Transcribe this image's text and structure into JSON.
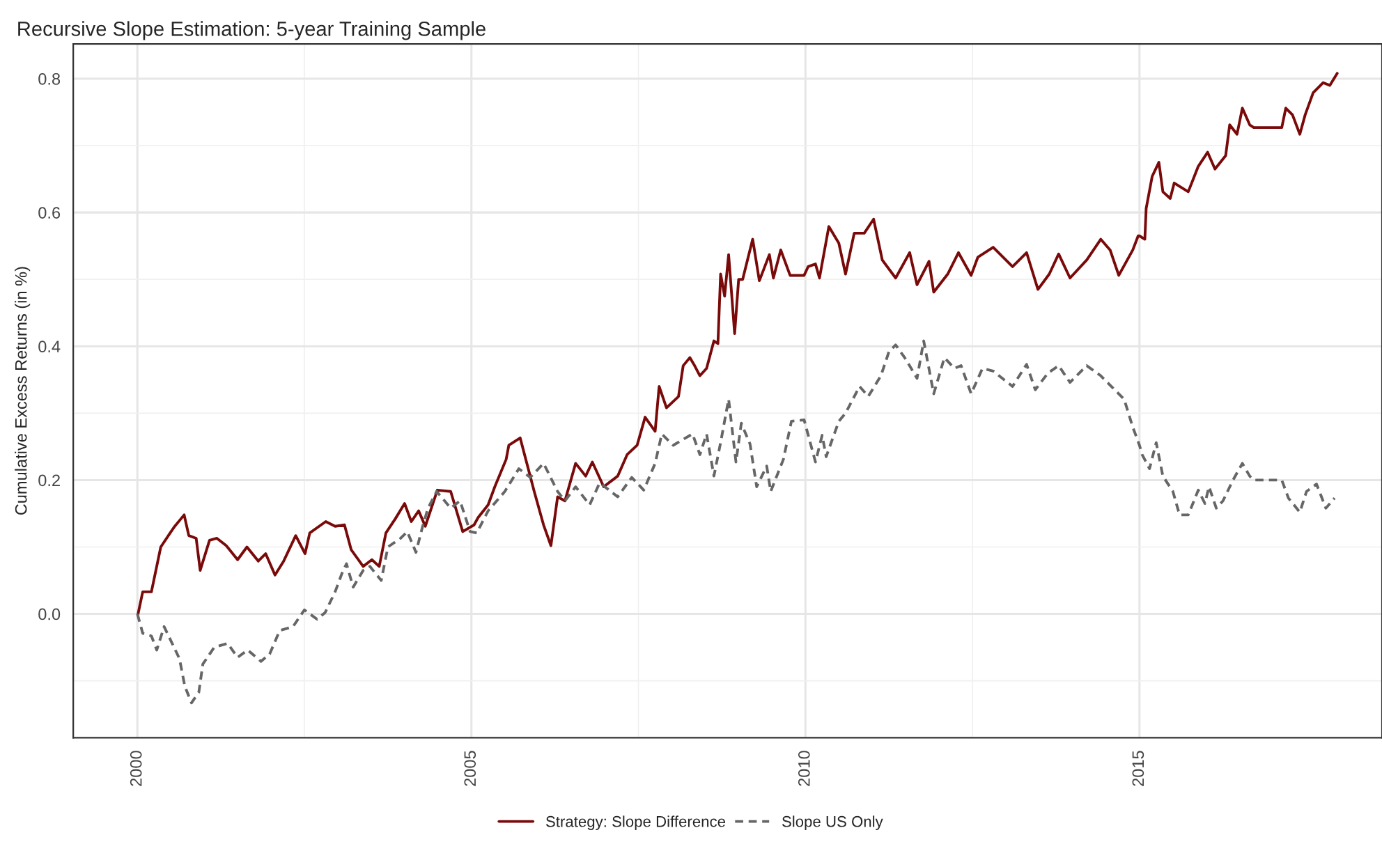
{
  "chart_data": {
    "type": "line",
    "title": "Recursive Slope Estimation: 5-year Training Sample",
    "ylabel": "Cumulative Excess Returns (in %)",
    "xlim": [
      1999.04,
      2018.63
    ],
    "ylim": [
      -0.185,
      0.852
    ],
    "xticks": [
      2000,
      2005,
      2010,
      2015
    ],
    "yticks": [
      {
        "value": 0,
        "label": "0.0"
      },
      {
        "value": 0.2,
        "label": "0.2"
      },
      {
        "value": 0.4,
        "label": "0.4"
      },
      {
        "value": 0.6,
        "label": "0.6"
      },
      {
        "value": 0.8,
        "label": "0.8"
      }
    ],
    "grid": true,
    "legend": "bottom",
    "series": [
      {
        "name": "Strategy: Slope Difference",
        "color": "#7a0a0a",
        "line_style": "solid",
        "x": [
          2000.01,
          2000.08,
          2000.21,
          2000.35,
          2000.49,
          2000.56,
          2000.7,
          2000.77,
          2000.88,
          2000.94,
          2001.08,
          2001.19,
          2001.33,
          2001.5,
          2001.64,
          2001.81,
          2001.92,
          2002.06,
          2002.19,
          2002.37,
          2002.51,
          2002.58,
          2002.82,
          2002.96,
          2003.1,
          2003.2,
          2003.38,
          2003.51,
          2003.62,
          2003.72,
          2003.86,
          2004.0,
          2004.1,
          2004.21,
          2004.31,
          2004.49,
          2004.69,
          2004.87,
          2005.04,
          2005.1,
          2005.25,
          2005.35,
          2005.52,
          2005.56,
          2005.73,
          2005.83,
          2005.94,
          2006.08,
          2006.19,
          2006.29,
          2006.4,
          2006.56,
          2006.71,
          2006.81,
          2006.98,
          2007.19,
          2007.33,
          2007.48,
          2007.6,
          2007.75,
          2007.81,
          2007.92,
          2008.1,
          2008.17,
          2008.27,
          2008.33,
          2008.42,
          2008.52,
          2008.63,
          2008.69,
          2008.73,
          2008.79,
          2008.85,
          2008.94,
          2009.0,
          2009.06,
          2009.21,
          2009.31,
          2009.46,
          2009.52,
          2009.63,
          2009.77,
          2009.98,
          2010.04,
          2010.15,
          2010.21,
          2010.35,
          2010.5,
          2010.6,
          2010.73,
          2010.88,
          2011.02,
          2011.15,
          2011.35,
          2011.56,
          2011.67,
          2011.85,
          2011.92,
          2012.13,
          2012.29,
          2012.48,
          2012.58,
          2012.81,
          2013.1,
          2013.31,
          2013.48,
          2013.65,
          2013.79,
          2013.96,
          2014.21,
          2014.42,
          2014.56,
          2014.69,
          2014.9,
          2014.98,
          2015.0,
          2015.08,
          2015.1,
          2015.19,
          2015.29,
          2015.35,
          2015.46,
          2015.52,
          2015.73,
          2015.88,
          2016.02,
          2016.13,
          2016.29,
          2016.35,
          2016.46,
          2016.54,
          2016.65,
          2016.71,
          2017.13,
          2017.19,
          2017.29,
          2017.4,
          2017.48,
          2017.6,
          2017.75,
          2017.85,
          2017.96
        ],
        "values": [
          0.0,
          0.033,
          0.033,
          0.1,
          0.121,
          0.131,
          0.148,
          0.117,
          0.113,
          0.065,
          0.11,
          0.113,
          0.102,
          0.081,
          0.1,
          0.079,
          0.09,
          0.058,
          0.079,
          0.117,
          0.09,
          0.121,
          0.138,
          0.131,
          0.133,
          0.096,
          0.071,
          0.081,
          0.071,
          0.121,
          0.142,
          0.165,
          0.138,
          0.154,
          0.131,
          0.185,
          0.183,
          0.123,
          0.133,
          0.144,
          0.163,
          0.19,
          0.231,
          0.252,
          0.263,
          0.225,
          0.183,
          0.133,
          0.102,
          0.175,
          0.169,
          0.225,
          0.206,
          0.227,
          0.19,
          0.206,
          0.238,
          0.252,
          0.294,
          0.273,
          0.34,
          0.308,
          0.325,
          0.371,
          0.383,
          0.373,
          0.356,
          0.367,
          0.408,
          0.404,
          0.508,
          0.475,
          0.537,
          0.419,
          0.5,
          0.5,
          0.56,
          0.498,
          0.537,
          0.502,
          0.544,
          0.506,
          0.506,
          0.519,
          0.523,
          0.502,
          0.579,
          0.554,
          0.508,
          0.569,
          0.569,
          0.59,
          0.529,
          0.502,
          0.54,
          0.492,
          0.527,
          0.481,
          0.508,
          0.54,
          0.506,
          0.533,
          0.548,
          0.519,
          0.54,
          0.485,
          0.508,
          0.538,
          0.502,
          0.529,
          0.56,
          0.544,
          0.506,
          0.544,
          0.565,
          0.565,
          0.56,
          0.606,
          0.654,
          0.675,
          0.631,
          0.621,
          0.644,
          0.631,
          0.669,
          0.69,
          0.665,
          0.685,
          0.731,
          0.717,
          0.756,
          0.731,
          0.727,
          0.727,
          0.756,
          0.746,
          0.717,
          0.746,
          0.779,
          0.794,
          0.79,
          0.808
        ]
      },
      {
        "name": "Slope US Only",
        "color": "#666666",
        "line_style": "dashed",
        "x": [
          2000.0,
          2000.08,
          2000.21,
          2000.29,
          2000.4,
          2000.52,
          2000.63,
          2000.71,
          2000.81,
          2000.92,
          2000.98,
          2001.15,
          2001.35,
          2001.5,
          2001.65,
          2001.85,
          2001.98,
          2002.13,
          2002.33,
          2002.5,
          2002.69,
          2002.81,
          2002.96,
          2003.06,
          2003.13,
          2003.23,
          2003.38,
          2003.48,
          2003.65,
          2003.75,
          2003.94,
          2004.04,
          2004.17,
          2004.27,
          2004.35,
          2004.48,
          2004.69,
          2004.83,
          2004.98,
          2005.08,
          2005.25,
          2005.5,
          2005.71,
          2005.88,
          2006.08,
          2006.29,
          2006.4,
          2006.56,
          2006.77,
          2006.92,
          2007.19,
          2007.4,
          2007.58,
          2007.75,
          2007.85,
          2008.02,
          2008.31,
          2008.42,
          2008.52,
          2008.63,
          2008.73,
          2008.85,
          2008.96,
          2009.04,
          2009.17,
          2009.27,
          2009.42,
          2009.48,
          2009.67,
          2009.79,
          2009.98,
          2010.15,
          2010.25,
          2010.31,
          2010.5,
          2010.6,
          2010.81,
          2010.94,
          2011.13,
          2011.25,
          2011.35,
          2011.5,
          2011.67,
          2011.77,
          2011.92,
          2012.08,
          2012.23,
          2012.33,
          2012.48,
          2012.65,
          2012.81,
          2013.1,
          2013.31,
          2013.44,
          2013.63,
          2013.79,
          2013.96,
          2014.21,
          2014.42,
          2014.63,
          2014.77,
          2014.9,
          2015.0,
          2015.04,
          2015.15,
          2015.25,
          2015.35,
          2015.5,
          2015.6,
          2015.73,
          2015.88,
          2015.98,
          2016.04,
          2016.15,
          2016.25,
          2016.4,
          2016.54,
          2016.65,
          2016.71,
          2017.13,
          2017.23,
          2017.4,
          2017.5,
          2017.65,
          2017.79,
          2017.92
        ],
        "values": [
          0.0,
          -0.029,
          -0.033,
          -0.054,
          -0.019,
          -0.044,
          -0.067,
          -0.108,
          -0.133,
          -0.117,
          -0.075,
          -0.05,
          -0.044,
          -0.065,
          -0.054,
          -0.071,
          -0.06,
          -0.025,
          -0.019,
          0.006,
          -0.008,
          0.002,
          0.033,
          0.06,
          0.075,
          0.04,
          0.065,
          0.071,
          0.05,
          0.1,
          0.113,
          0.123,
          0.092,
          0.131,
          0.158,
          0.183,
          0.158,
          0.169,
          0.123,
          0.121,
          0.154,
          0.183,
          0.217,
          0.204,
          0.225,
          0.183,
          0.169,
          0.19,
          0.163,
          0.196,
          0.175,
          0.204,
          0.185,
          0.225,
          0.269,
          0.252,
          0.269,
          0.238,
          0.269,
          0.206,
          0.256,
          0.321,
          0.227,
          0.285,
          0.254,
          0.19,
          0.221,
          0.183,
          0.231,
          0.288,
          0.29,
          0.227,
          0.267,
          0.235,
          0.288,
          0.3,
          0.34,
          0.325,
          0.356,
          0.392,
          0.402,
          0.381,
          0.352,
          0.408,
          0.329,
          0.383,
          0.367,
          0.371,
          0.329,
          0.367,
          0.363,
          0.34,
          0.373,
          0.335,
          0.36,
          0.371,
          0.346,
          0.371,
          0.356,
          0.335,
          0.321,
          0.279,
          0.252,
          0.238,
          0.217,
          0.256,
          0.206,
          0.183,
          0.148,
          0.148,
          0.185,
          0.165,
          0.19,
          0.158,
          0.169,
          0.2,
          0.225,
          0.206,
          0.2,
          0.2,
          0.173,
          0.152,
          0.183,
          0.194,
          0.158,
          0.173
        ]
      }
    ]
  }
}
